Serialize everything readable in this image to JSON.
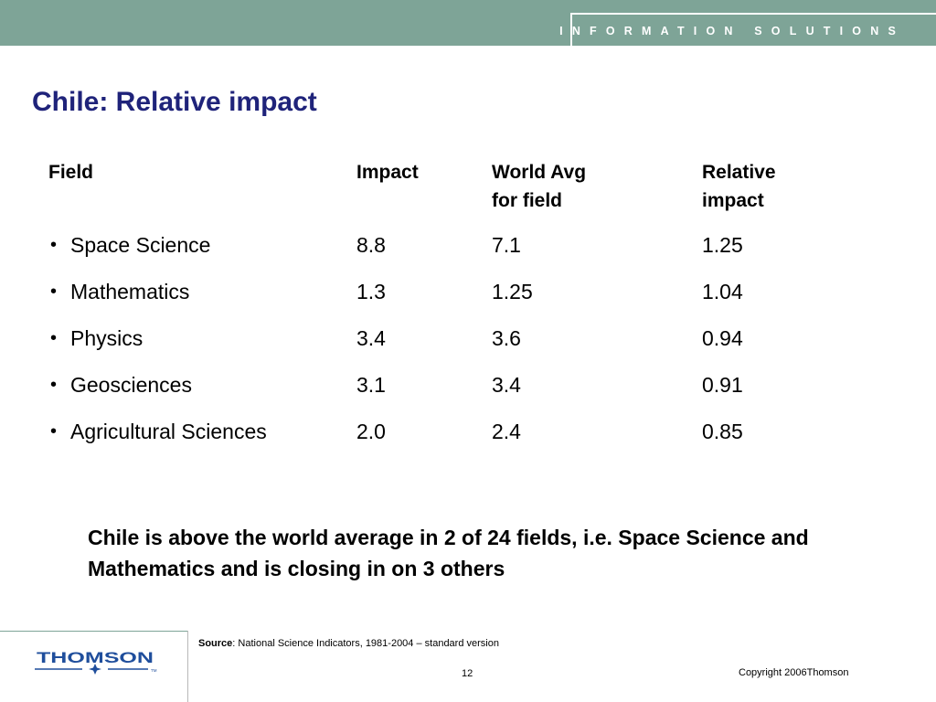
{
  "banner": {
    "text": "INFORMATION SOLUTIONS"
  },
  "title": "Chile: Relative impact",
  "table": {
    "headers": [
      {
        "line1": "Field",
        "line2": ""
      },
      {
        "line1": "Impact",
        "line2": ""
      },
      {
        "line1": "World Avg",
        "line2": "for field"
      },
      {
        "line1": "Relative",
        "line2": "impact"
      }
    ],
    "bullet": "•",
    "rows": [
      {
        "field": "Space Science",
        "impact": "8.8",
        "world_avg": "7.1",
        "relative": "1.25"
      },
      {
        "field": "Mathematics",
        "impact": "1.3",
        "world_avg": "1.25",
        "relative": "1.04"
      },
      {
        "field": "Physics",
        "impact": "3.4",
        "world_avg": "3.6",
        "relative": "0.94"
      },
      {
        "field": "Geosciences",
        "impact": "3.1",
        "world_avg": "3.4",
        "relative": "0.91"
      },
      {
        "field": "Agricultural Sciences",
        "impact": "2.0",
        "world_avg": "2.4",
        "relative": "0.85"
      }
    ]
  },
  "summary": "Chile is above the world average in 2 of 24 fields, i.e. Space Science and Mathematics and is closing in on 3 others",
  "footer": {
    "source_label": "Source",
    "source_text": ": National Science Indicators, 1981-2004 – standard version",
    "logo_text": "THOMSON",
    "logo_tm": "TM",
    "page_number": "12",
    "copyright": "Copyright 2006Thomson"
  },
  "colors": {
    "banner": "#7ea497",
    "title": "#1f237a",
    "logo": "#1f4e9c"
  }
}
